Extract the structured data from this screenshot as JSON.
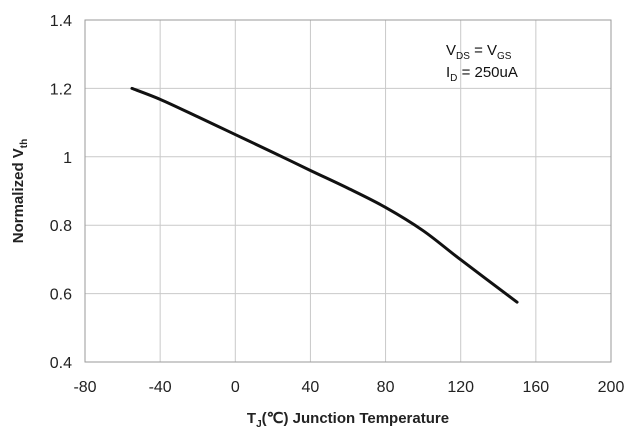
{
  "chart_data": {
    "type": "line",
    "xlabel": {
      "main": "T",
      "sub": "J",
      "rest": "(℃) Junction Temperature"
    },
    "ylabel": {
      "main": "Normalized V",
      "sub": "th"
    },
    "xlim": [
      -80,
      200
    ],
    "ylim": [
      0.4,
      1.4
    ],
    "xticks": [
      -80,
      -40,
      0,
      40,
      80,
      120,
      160,
      200
    ],
    "yticks": [
      0.4,
      0.6,
      0.8,
      1.0,
      1.2,
      1.4
    ],
    "xtick_labels": [
      "-80",
      "-40",
      "0",
      "40",
      "80",
      "120",
      "160",
      "200"
    ],
    "ytick_labels": [
      "0.4",
      "0.6",
      "0.8",
      "1",
      "1.2",
      "1.4"
    ],
    "grid": true,
    "annotation": {
      "line1": {
        "a": "V",
        "a_sub": "DS",
        "mid": " = V",
        "b_sub": "GS"
      },
      "line2": {
        "a": "I",
        "a_sub": "D",
        "rest": " = 250uA"
      }
    },
    "series": [
      {
        "color": "#111111",
        "x": [
          -55,
          -40,
          -20,
          0,
          20,
          40,
          60,
          80,
          100,
          120,
          150
        ],
        "y": [
          1.2,
          1.168,
          1.117,
          1.065,
          1.013,
          0.96,
          0.908,
          0.852,
          0.784,
          0.699,
          0.575
        ]
      }
    ]
  }
}
